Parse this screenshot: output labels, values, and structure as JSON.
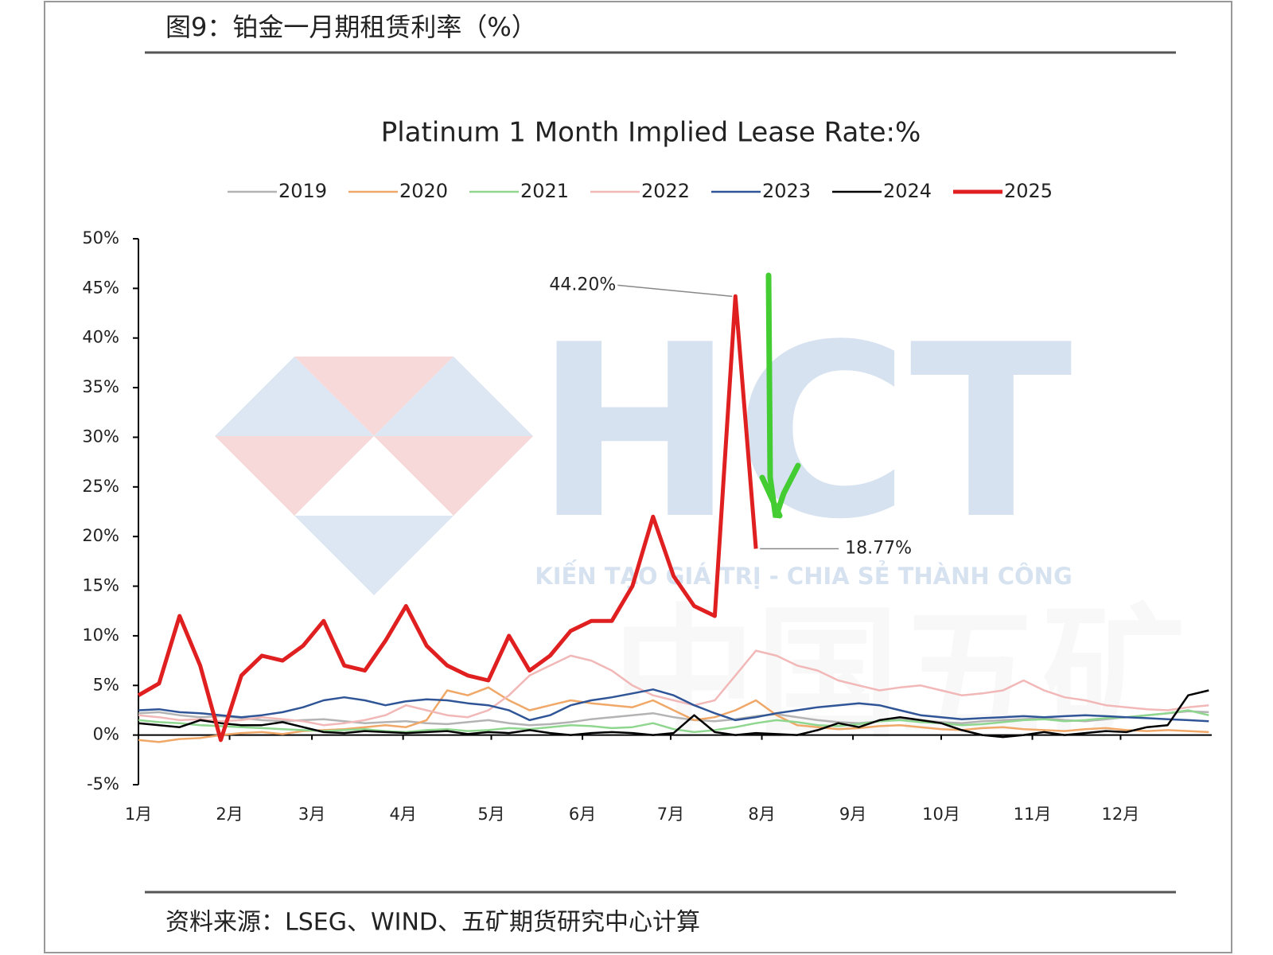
{
  "header": {
    "title": "图9：铂金一月期租赁利率（%）"
  },
  "footer": {
    "source": "资料来源：LSEG、WIND、五矿期货研究中心计算"
  },
  "watermark": {
    "logo": "HCT",
    "slogan": "KIẾN TẠO GIÁ TRỊ - CHIA SẺ THÀNH CÔNG",
    "mark": "中国五矿"
  },
  "chart_data": {
    "type": "line",
    "title": "Platinum 1 Month Implied Lease Rate:%",
    "x": [
      0,
      7,
      14,
      21,
      28,
      35,
      42,
      49,
      56,
      63,
      70,
      77,
      84,
      91,
      98,
      105,
      112,
      119,
      126,
      133,
      140,
      147,
      154,
      161,
      168,
      175,
      182,
      189,
      196,
      203,
      210,
      217,
      224,
      231,
      238,
      245,
      252,
      259,
      266,
      273,
      280,
      287,
      294,
      301,
      308,
      315,
      322,
      329,
      336,
      343,
      350,
      357,
      364
    ],
    "xlim": [
      0,
      365
    ],
    "xticks": [
      {
        "value": 0,
        "label": "1月"
      },
      {
        "value": 31,
        "label": "2月"
      },
      {
        "value": 59,
        "label": "3月"
      },
      {
        "value": 90,
        "label": "4月"
      },
      {
        "value": 120,
        "label": "5月"
      },
      {
        "value": 151,
        "label": "6月"
      },
      {
        "value": 181,
        "label": "7月"
      },
      {
        "value": 212,
        "label": "8月"
      },
      {
        "value": 243,
        "label": "9月"
      },
      {
        "value": 273,
        "label": "10月"
      },
      {
        "value": 304,
        "label": "11月"
      },
      {
        "value": 334,
        "label": "12月"
      }
    ],
    "ylim": [
      -5,
      50
    ],
    "yticks": [
      {
        "value": -5,
        "label": "-5%"
      },
      {
        "value": 0,
        "label": "0%"
      },
      {
        "value": 5,
        "label": "5%"
      },
      {
        "value": 10,
        "label": "10%"
      },
      {
        "value": 15,
        "label": "15%"
      },
      {
        "value": 20,
        "label": "20%"
      },
      {
        "value": 25,
        "label": "25%"
      },
      {
        "value": 30,
        "label": "30%"
      },
      {
        "value": 35,
        "label": "35%"
      },
      {
        "value": 40,
        "label": "40%"
      },
      {
        "value": 45,
        "label": "45%"
      },
      {
        "value": 50,
        "label": "50%"
      }
    ],
    "grid": false,
    "legend": "top",
    "series": [
      {
        "name": "2019",
        "color": "#b3b3b3",
        "line_width": 2.5,
        "values": [
          2.2,
          2.3,
          2.0,
          1.8,
          1.9,
          1.7,
          1.5,
          1.4,
          1.5,
          1.6,
          1.4,
          1.2,
          1.3,
          1.4,
          1.2,
          1.1,
          1.3,
          1.5,
          1.2,
          1.0,
          1.1,
          1.3,
          1.6,
          1.8,
          2.0,
          2.2,
          1.8,
          1.5,
          1.4,
          1.6,
          1.9,
          2.1,
          1.8,
          1.5,
          1.3,
          1.2,
          1.4,
          1.6,
          1.5,
          1.3,
          1.2,
          1.4,
          1.5,
          1.6,
          1.7,
          1.5,
          1.4,
          1.6,
          1.8,
          2.0,
          2.2,
          2.4,
          2.3
        ]
      },
      {
        "name": "2020",
        "color": "#f0a868",
        "line_width": 2.5,
        "values": [
          -0.5,
          -0.7,
          -0.4,
          -0.3,
          0.0,
          0.2,
          0.3,
          0.1,
          0.4,
          0.5,
          0.6,
          0.8,
          1.0,
          0.8,
          1.5,
          4.5,
          4.0,
          4.8,
          3.5,
          2.5,
          3.0,
          3.5,
          3.2,
          3.0,
          2.8,
          3.5,
          2.5,
          1.5,
          1.8,
          2.5,
          3.5,
          2.0,
          1.0,
          0.8,
          0.6,
          0.7,
          0.9,
          1.0,
          0.8,
          0.6,
          0.5,
          0.7,
          0.8,
          0.6,
          0.5,
          0.4,
          0.6,
          0.7,
          0.5,
          0.4,
          0.5,
          0.4,
          0.3
        ]
      },
      {
        "name": "2021",
        "color": "#8fd68f",
        "line_width": 2.5,
        "values": [
          1.5,
          1.3,
          1.2,
          1.0,
          0.9,
          0.8,
          0.7,
          0.6,
          0.5,
          0.4,
          0.5,
          0.6,
          0.4,
          0.3,
          0.5,
          0.6,
          0.4,
          0.5,
          0.7,
          0.6,
          0.8,
          1.0,
          0.9,
          0.7,
          0.8,
          1.2,
          0.6,
          0.3,
          0.5,
          0.8,
          1.2,
          1.5,
          1.3,
          1.0,
          0.9,
          1.1,
          1.4,
          1.5,
          1.3,
          1.2,
          1.0,
          1.1,
          1.3,
          1.5,
          1.6,
          1.4,
          1.5,
          1.7,
          1.8,
          2.0,
          2.2,
          2.5,
          2.0
        ]
      },
      {
        "name": "2022",
        "color": "#f2b8b8",
        "line_width": 2.5,
        "values": [
          2.0,
          1.8,
          1.5,
          1.6,
          1.4,
          1.5,
          1.8,
          1.6,
          1.4,
          1.0,
          1.2,
          1.5,
          2.0,
          3.0,
          2.5,
          2.0,
          1.8,
          2.5,
          4.0,
          6.0,
          7.0,
          8.0,
          7.5,
          6.5,
          5.0,
          4.0,
          3.5,
          3.0,
          3.5,
          6.0,
          8.5,
          8.0,
          7.0,
          6.5,
          5.5,
          5.0,
          4.5,
          4.8,
          5.0,
          4.5,
          4.0,
          4.2,
          4.5,
          5.5,
          4.5,
          3.8,
          3.5,
          3.0,
          2.8,
          2.6,
          2.5,
          2.8,
          3.0
        ]
      },
      {
        "name": "2023",
        "color": "#2f5597",
        "line_width": 2.5,
        "values": [
          2.5,
          2.6,
          2.3,
          2.2,
          2.0,
          1.8,
          2.0,
          2.3,
          2.8,
          3.5,
          3.8,
          3.5,
          3.0,
          3.4,
          3.6,
          3.5,
          3.2,
          3.0,
          2.5,
          1.5,
          2.0,
          3.0,
          3.5,
          3.8,
          4.2,
          4.6,
          4.0,
          3.0,
          2.2,
          1.5,
          1.8,
          2.2,
          2.5,
          2.8,
          3.0,
          3.2,
          3.0,
          2.5,
          2.0,
          1.8,
          1.6,
          1.7,
          1.8,
          1.9,
          1.8,
          1.9,
          2.0,
          1.9,
          1.8,
          1.7,
          1.6,
          1.5,
          1.4
        ]
      },
      {
        "name": "2024",
        "color": "#000000",
        "line_width": 2.5,
        "values": [
          1.2,
          1.0,
          0.8,
          1.5,
          1.2,
          1.0,
          1.0,
          1.3,
          0.8,
          0.3,
          0.2,
          0.4,
          0.3,
          0.2,
          0.3,
          0.4,
          0.1,
          0.3,
          0.2,
          0.5,
          0.2,
          0.0,
          0.2,
          0.3,
          0.2,
          0.0,
          0.2,
          2.0,
          0.3,
          0.0,
          0.2,
          0.1,
          0.0,
          0.5,
          1.2,
          0.8,
          1.5,
          1.8,
          1.5,
          1.2,
          0.5,
          0.0,
          -0.2,
          0.0,
          0.3,
          0.0,
          0.2,
          0.4,
          0.3,
          0.8,
          1.0,
          4.0,
          4.5
        ]
      },
      {
        "name": "2025",
        "color": "#e02020",
        "line_width": 5,
        "values": [
          4,
          5.2,
          12,
          7,
          -0.5,
          6,
          8,
          7.5,
          9,
          11.5,
          7,
          6.5,
          9.5,
          13,
          9,
          7,
          6,
          5.5,
          10,
          6.5,
          8,
          10.5,
          11.5,
          11.5,
          15,
          22,
          16,
          13,
          12,
          44.2,
          18.77,
          null,
          null,
          null,
          null,
          null,
          null,
          null,
          null,
          null,
          null,
          null,
          null,
          null,
          null,
          null,
          null,
          null,
          null,
          null,
          null,
          null,
          null
        ],
        "value_labels": [
          null,
          null,
          null,
          null,
          null,
          null,
          null,
          null,
          null,
          null,
          null,
          null,
          null,
          null,
          null,
          null,
          null,
          null,
          null,
          null,
          null,
          null,
          null,
          null,
          null,
          null,
          null,
          null,
          null,
          "44.20%",
          "18.77%",
          null,
          null,
          null,
          null,
          null,
          null,
          null,
          null,
          null,
          null,
          null,
          null,
          null,
          null,
          null,
          null,
          null,
          null,
          null,
          null,
          null,
          null
        ]
      }
    ]
  }
}
